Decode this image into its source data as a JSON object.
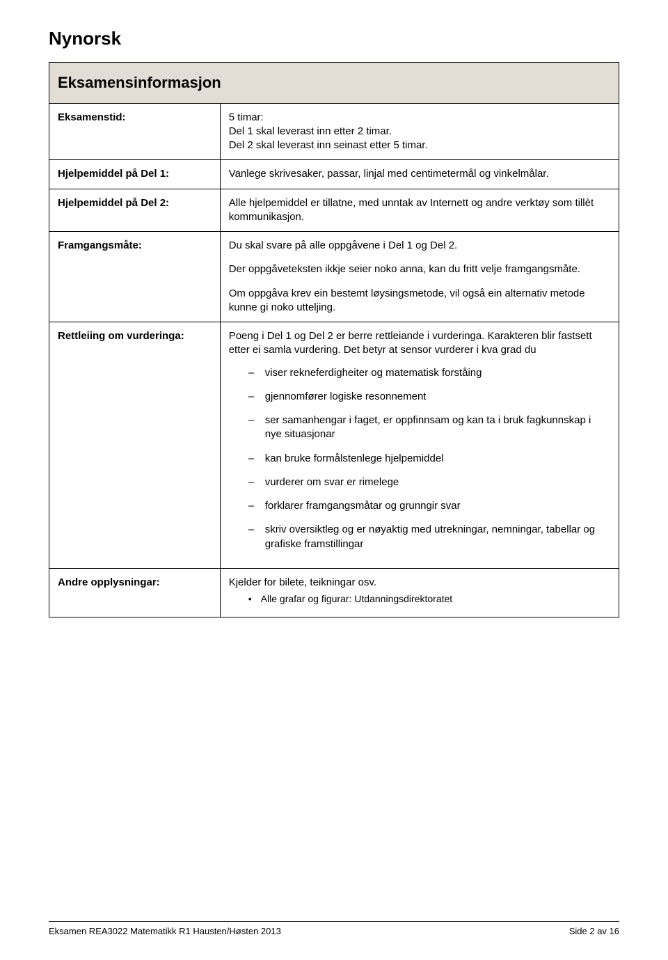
{
  "page": {
    "language_heading": "Nynorsk",
    "table_header": "Eksamensinformasjon",
    "colors": {
      "header_bg": "#e2ded5",
      "border": "#000000",
      "text": "#000000",
      "page_bg": "#ffffff"
    },
    "typography": {
      "heading_fontsize_pt": 20,
      "table_header_fontsize_pt": 17,
      "body_fontsize_pt": 11,
      "label_weight": "bold",
      "font_family": "Arial"
    }
  },
  "rows": {
    "eksamenstid": {
      "label": "Eksamenstid:",
      "lines": [
        "5 timar:",
        "Del 1 skal leverast inn etter 2 timar.",
        "Del 2 skal leverast inn seinast etter 5 timar."
      ]
    },
    "hjelp1": {
      "label": "Hjelpemiddel på Del 1:",
      "text": "Vanlege skrivesaker, passar, linjal med centimetermål og vinkelmålar."
    },
    "hjelp2": {
      "label": "Hjelpemiddel på Del 2:",
      "text": "Alle hjelpemiddel er tillatne, med unntak av Internett og andre verktøy som tillèt kommunikasjon."
    },
    "framgang": {
      "label": "Framgangsmåte:",
      "paras": [
        "Du skal svare på alle oppgåvene i Del 1 og Del 2.",
        "Der oppgåveteksten ikkje seier noko anna, kan du fritt velje framgangsmåte.",
        "Om oppgåva krev ein bestemt løysingsmetode, vil også ein alternativ metode kunne gi noko utteljing."
      ]
    },
    "rettleiing": {
      "label": "Rettleiing om vurderinga:",
      "intro": "Poeng i Del 1 og Del 2 er berre rettleiande i vurderinga. Karakteren blir fastsett etter ei samla vurdering. Det betyr at sensor vurderer i kva grad du",
      "bullets": [
        "viser rekneferdigheiter og matematisk forståing",
        "gjennomfører logiske resonnement",
        "ser samanhengar i faget, er oppfinnsam og kan ta i bruk fagkunnskap i nye situasjonar",
        "kan bruke formålstenlege hjelpemiddel",
        "vurderer om svar er rimelege",
        "forklarer framgangsmåtar og grunngir svar",
        "skriv oversiktleg og er nøyaktig med utrekningar, nemningar, tabellar og grafiske framstillingar"
      ]
    },
    "andre": {
      "label": "Andre opplysningar:",
      "text": "Kjelder for bilete, teikningar osv.",
      "bullets": [
        "Alle grafar og figurar: Utdanningsdirektoratet"
      ]
    }
  },
  "footer": {
    "left": "Eksamen REA3022 Matematikk R1 Hausten/Høsten 2013",
    "right": "Side 2 av 16"
  }
}
